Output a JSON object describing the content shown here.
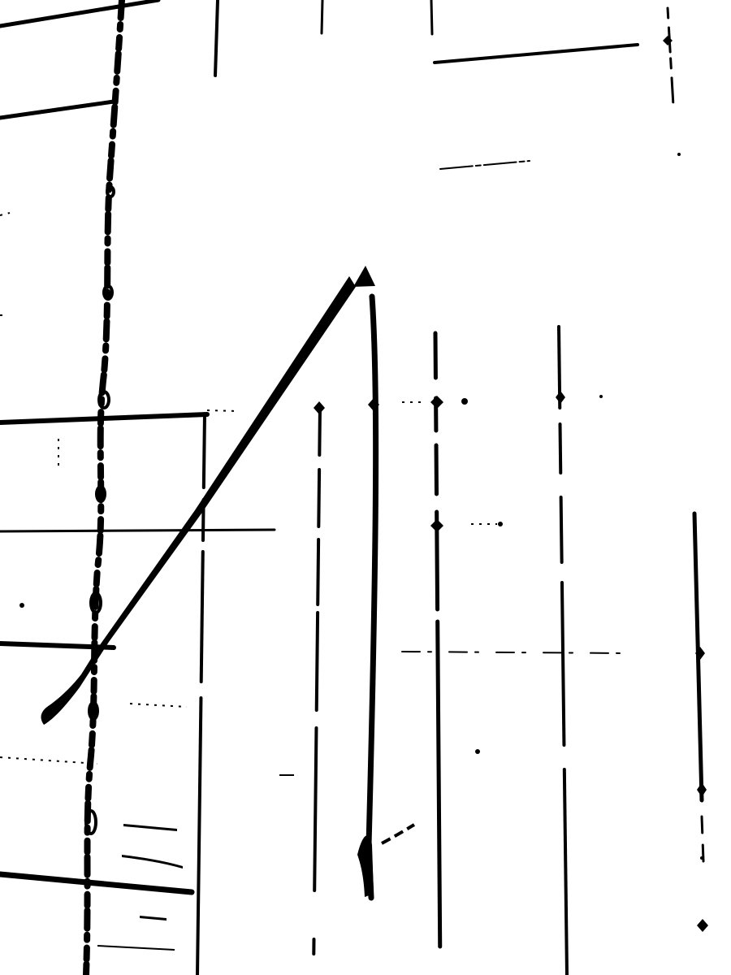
{
  "image": {
    "kind": "high-contrast black-and-white scan of ruled paper with handwritten strokes",
    "ink_color": "#000000",
    "paper_color": "#ffffff",
    "visible_text": []
  }
}
